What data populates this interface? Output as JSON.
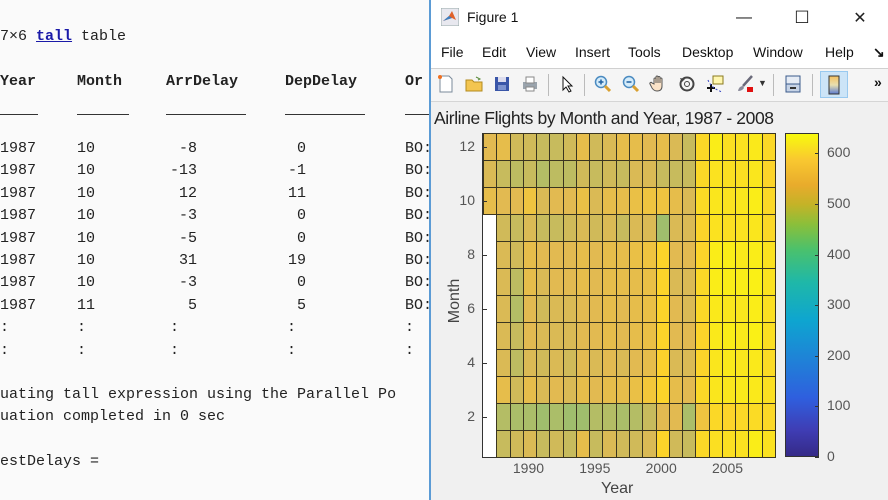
{
  "command_window": {
    "table_desc_prefix": "7×6 ",
    "table_desc_link": "tall",
    "table_desc_suffix": " table",
    "columns": [
      "Year",
      "Month",
      "ArrDelay",
      "DepDelay",
      "Or"
    ],
    "rows": [
      [
        "1987",
        "10",
        "-8",
        "0",
        "BO:"
      ],
      [
        "1987",
        "10",
        "-13",
        "-1",
        "BO:"
      ],
      [
        "1987",
        "10",
        "12",
        "11",
        "BO:"
      ],
      [
        "1987",
        "10",
        "-3",
        "0",
        "BO:"
      ],
      [
        "1987",
        "10",
        "-5",
        "0",
        "BO:"
      ],
      [
        "1987",
        "10",
        "31",
        "19",
        "BO:"
      ],
      [
        "1987",
        "10",
        "-3",
        "0",
        "BO:"
      ],
      [
        "1987",
        "11",
        "5",
        "5",
        "BO:"
      ],
      [
        ":",
        ":",
        ":",
        ":",
        ":"
      ],
      [
        ":",
        ":",
        ":",
        ":",
        ":"
      ]
    ],
    "eval_line1": "uating tall expression using the Parallel Po",
    "eval_line2": "uation completed in 0 sec",
    "result_line": "estDelays ="
  },
  "figure": {
    "title": "Figure 1",
    "menu": [
      "File",
      "Edit",
      "View",
      "Insert",
      "Tools",
      "Desktop",
      "Window",
      "Help"
    ],
    "menu_overflow": "↘",
    "window_buttons": {
      "minimize": "—",
      "maximize": "☐",
      "close": "✕"
    },
    "toolbar": [
      {
        "name": "new-figure-icon",
        "glyph": "🗋"
      },
      {
        "name": "open-file-icon",
        "glyph": "📂"
      },
      {
        "name": "save-icon",
        "glyph": "💾"
      },
      {
        "name": "print-icon",
        "glyph": "🖶"
      },
      {
        "name": "edit-plot-icon",
        "glyph": "↖"
      },
      {
        "name": "zoom-in-icon",
        "glyph": "⊕"
      },
      {
        "name": "zoom-out-icon",
        "glyph": "⊖"
      },
      {
        "name": "pan-icon",
        "glyph": "✋"
      },
      {
        "name": "rotate-3d-icon",
        "glyph": "⟲"
      },
      {
        "name": "data-cursor-icon",
        "glyph": "✚"
      },
      {
        "name": "brush-icon",
        "glyph": "🖌"
      },
      {
        "name": "link-plot-icon",
        "glyph": "⧉"
      },
      {
        "name": "colorbar-icon",
        "glyph": "▯"
      }
    ],
    "toolbar_overflow": "»"
  },
  "colors": {
    "window_border": "#5b9bd5",
    "link": "#1a1aa8"
  },
  "chart_data": {
    "type": "heatmap",
    "title": "Airline Flights by Month and Year, 1987 - 2008",
    "xlabel": "Year",
    "ylabel": "Month",
    "x": [
      1987,
      1988,
      1989,
      1990,
      1991,
      1992,
      1993,
      1994,
      1995,
      1996,
      1997,
      1998,
      1999,
      2000,
      2001,
      2002,
      2003,
      2004,
      2005,
      2006,
      2007,
      2008
    ],
    "y": [
      1,
      2,
      3,
      4,
      5,
      6,
      7,
      8,
      9,
      10,
      11,
      12
    ],
    "xticks": [
      "1990",
      "1995",
      "2000",
      "2005"
    ],
    "yticks": [
      "2",
      "4",
      "6",
      "8",
      "10",
      "12"
    ],
    "colorbar": {
      "colormap": "parula",
      "range": [
        0,
        640
      ],
      "ticks": [
        "0",
        "100",
        "200",
        "300",
        "400",
        "500",
        "600"
      ]
    },
    "values_by_month": {
      "12": [
        450,
        460,
        430,
        430,
        420,
        420,
        430,
        460,
        430,
        440,
        460,
        460,
        450,
        460,
        440,
        420,
        540,
        600,
        560,
        570,
        590,
        540
      ],
      "11": [
        440,
        420,
        410,
        420,
        400,
        410,
        410,
        430,
        420,
        430,
        420,
        440,
        440,
        420,
        420,
        420,
        540,
        570,
        560,
        560,
        580,
        530
      ],
      "10": [
        460,
        450,
        450,
        480,
        440,
        450,
        450,
        470,
        440,
        460,
        460,
        470,
        480,
        480,
        460,
        440,
        550,
        580,
        570,
        580,
        600,
        540
      ],
      "9": [
        null,
        430,
        420,
        440,
        420,
        420,
        430,
        440,
        430,
        440,
        420,
        440,
        440,
        380,
        440,
        440,
        530,
        570,
        560,
        570,
        580,
        540
      ],
      "8": [
        null,
        440,
        430,
        460,
        450,
        450,
        450,
        460,
        450,
        460,
        460,
        470,
        480,
        530,
        450,
        450,
        530,
        600,
        600,
        590,
        600,
        570
      ],
      "7": [
        null,
        440,
        410,
        460,
        440,
        450,
        450,
        460,
        450,
        460,
        460,
        460,
        470,
        530,
        440,
        440,
        540,
        600,
        600,
        600,
        610,
        570
      ],
      "6": [
        null,
        440,
        400,
        450,
        430,
        440,
        440,
        450,
        450,
        460,
        450,
        460,
        470,
        530,
        450,
        440,
        540,
        590,
        580,
        580,
        600,
        560
      ],
      "5": [
        null,
        440,
        420,
        450,
        440,
        440,
        440,
        450,
        450,
        460,
        450,
        460,
        470,
        530,
        450,
        450,
        530,
        590,
        600,
        590,
        610,
        560
      ],
      "4": [
        null,
        440,
        410,
        440,
        430,
        440,
        430,
        450,
        440,
        450,
        440,
        450,
        460,
        520,
        440,
        440,
        530,
        580,
        590,
        580,
        590,
        550
      ],
      "3": [
        null,
        460,
        430,
        460,
        440,
        450,
        440,
        460,
        450,
        460,
        460,
        470,
        490,
        530,
        460,
        450,
        540,
        580,
        580,
        590,
        590,
        560
      ],
      "2": [
        null,
        400,
        390,
        390,
        380,
        390,
        380,
        380,
        400,
        400,
        390,
        400,
        420,
        450,
        450,
        390,
        480,
        540,
        530,
        540,
        550,
        540
      ],
      "1": [
        null,
        420,
        430,
        440,
        420,
        430,
        420,
        460,
        420,
        440,
        430,
        430,
        440,
        530,
        430,
        420,
        540,
        560,
        560,
        570,
        600,
        570
      ]
    }
  }
}
